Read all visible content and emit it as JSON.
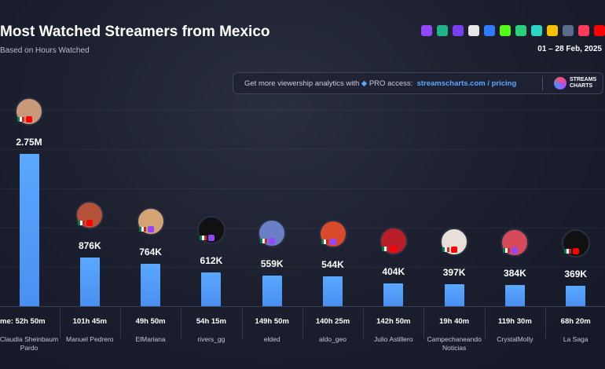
{
  "header": {
    "date": "01 – 28 Feb, 2025",
    "promo_text": "Get more viewership analytics with",
    "promo_access": "PRO access:",
    "promo_link": "streamscharts.com / pricing",
    "logo_line1": "STREAMS",
    "logo_line2": "CHARTS"
  },
  "chart_data": {
    "type": "bar",
    "title": "Most Watched Streamers from Mexico",
    "subtitle": "Based on Hours Watched",
    "categories": [
      "Claudia Sheinbaum Pardo",
      "Manuel Pedrero",
      "ElMariana",
      "rivers_gg",
      "elded",
      "aldo_geo",
      "Julio Astillero",
      "Campechaneando Noticias",
      "CrystalMolly",
      "La Saga"
    ],
    "values": [
      2750000,
      876000,
      764000,
      612000,
      559000,
      544000,
      404000,
      397000,
      384000,
      369000
    ],
    "value_labels": [
      "2.75M",
      "876K",
      "764K",
      "612K",
      "559K",
      "544K",
      "404K",
      "397K",
      "384K",
      "369K"
    ],
    "airtime": [
      "me: 52h 50m",
      "101h 45m",
      "49h 50m",
      "54h 15m",
      "149h 50m",
      "140h 25m",
      "142h 50m",
      "19h 40m",
      "119h 30m",
      "68h 20m"
    ],
    "color": "#5aa8ff"
  }
}
